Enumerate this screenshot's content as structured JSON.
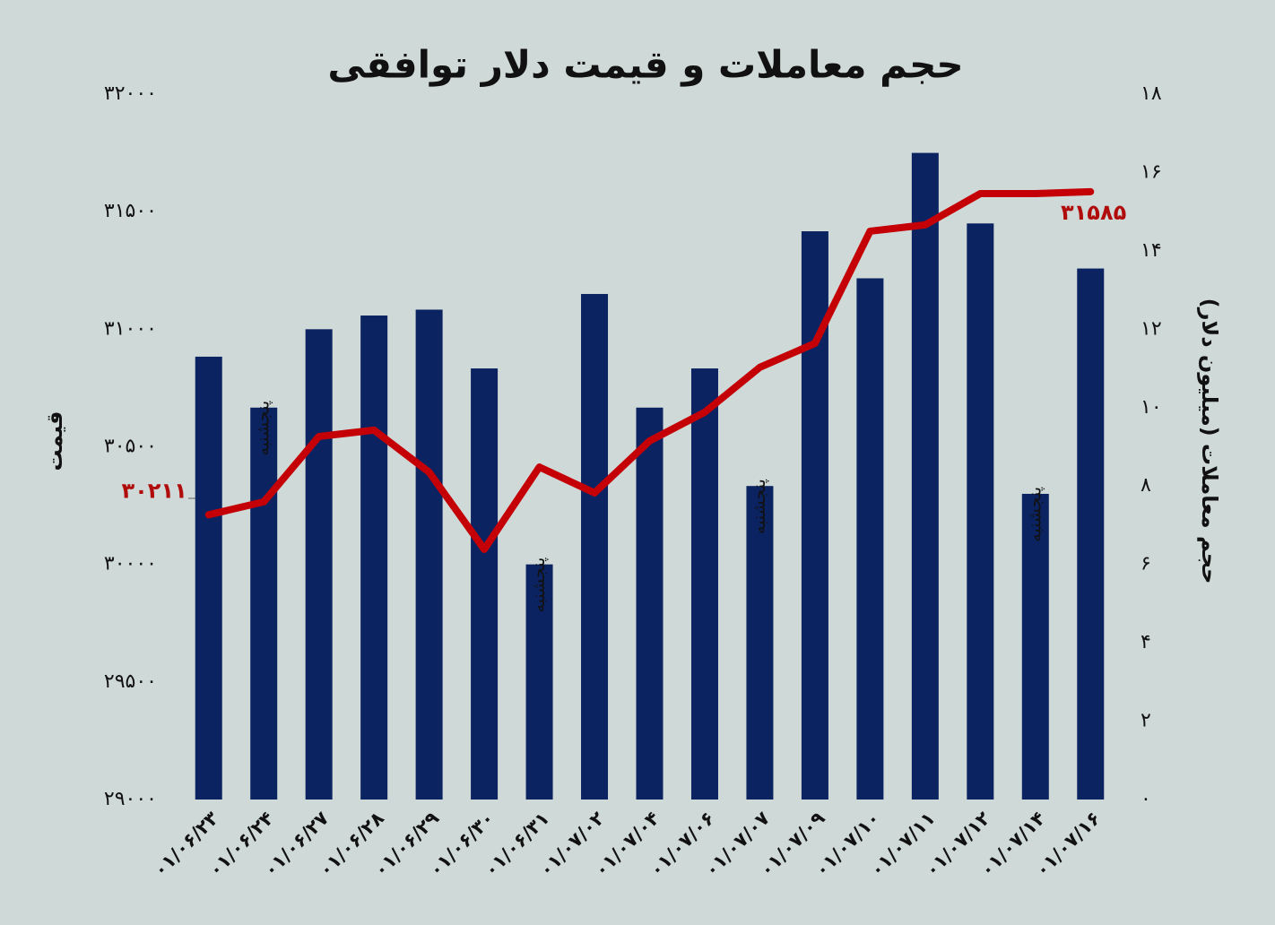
{
  "chart_data": {
    "type": "bar-line",
    "title": "حجم معاملات و قیمت دلار توافقی",
    "y_label": "قیمت",
    "y2_label": "حجم معاملات (میلیون دلار)",
    "categories": [
      "۰۱/۰۶/۲۳",
      "۰۱/۰۶/۲۴",
      "۰۱/۰۶/۲۷",
      "۰۱/۰۶/۲۸",
      "۰۱/۰۶/۲۹",
      "۰۱/۰۶/۳۰",
      "۰۱/۰۶/۳۱",
      "۰۱/۰۷/۰۲",
      "۰۱/۰۷/۰۴",
      "۰۱/۰۷/۰۶",
      "۰۱/۰۷/۰۷",
      "۰۱/۰۷/۰۹",
      "۰۱/۰۷/۱۰",
      "۰۱/۰۷/۱۱",
      "۰۱/۰۷/۱۲",
      "۰۱/۰۷/۱۴",
      "۰۱/۰۷/۱۶"
    ],
    "notes": [
      null,
      "پنجشنبه",
      null,
      null,
      null,
      null,
      "پنجشنبه",
      null,
      null,
      null,
      "پنجشنبه",
      null,
      null,
      null,
      null,
      "پنجشنبه",
      null
    ],
    "series": [
      {
        "type": "bar",
        "axis": "y2",
        "color": "#0c2361",
        "values": [
          11.3,
          10.0,
          12.0,
          12.35,
          12.5,
          11.0,
          6.0,
          12.9,
          10.0,
          11.0,
          8.0,
          14.5,
          13.3,
          16.5,
          14.7,
          7.8,
          13.55
        ]
      },
      {
        "type": "line",
        "color": "#c40006",
        "values": [
          30211,
          30266,
          30544,
          30571,
          30392,
          30064,
          30414,
          30304,
          30525,
          30647,
          30838,
          30940,
          31417,
          31444,
          31577,
          31577,
          31585
        ],
        "value_labels": [
          "۳۰۲۱۱",
          null,
          null,
          null,
          null,
          null,
          null,
          null,
          null,
          null,
          null,
          null,
          null,
          null,
          null,
          null,
          "۳۱۵۸۵"
        ]
      }
    ],
    "ylim": [
      29000,
      32000
    ],
    "yticks": [
      {
        "value": 29000,
        "label": "۲۹۰۰۰"
      },
      {
        "value": 29500,
        "label": "۲۹۵۰۰"
      },
      {
        "value": 30000,
        "label": "۳۰۰۰۰"
      },
      {
        "value": 30500,
        "label": "۳۰۵۰۰"
      },
      {
        "value": 31000,
        "label": "۳۱۰۰۰"
      },
      {
        "value": 31500,
        "label": "۳۱۵۰۰"
      },
      {
        "value": 32000,
        "label": "۳۲۰۰۰"
      }
    ],
    "y2lim": [
      0,
      18
    ],
    "y2ticks": [
      {
        "value": 0,
        "label": "۰"
      },
      {
        "value": 2,
        "label": "۲"
      },
      {
        "value": 4,
        "label": "۴"
      },
      {
        "value": 6,
        "label": "۶"
      },
      {
        "value": 8,
        "label": "۸"
      },
      {
        "value": 10,
        "label": "۱۰"
      },
      {
        "value": 12,
        "label": "۱۲"
      },
      {
        "value": 14,
        "label": "۱۴"
      },
      {
        "value": 16,
        "label": "۱۶"
      },
      {
        "value": 18,
        "label": "۱۸"
      }
    ],
    "grid": false
  }
}
